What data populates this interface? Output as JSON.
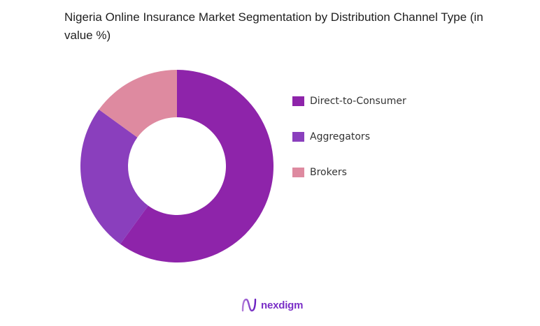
{
  "title": "Nigeria Online Insurance Market Segmentation by Distribution Channel Type (in value %)",
  "brand": {
    "name": "nexdigm",
    "icon": "nexdigm-logo-icon"
  },
  "chart_data": {
    "type": "pie",
    "variant": "donut",
    "title": "Nigeria Online Insurance Market Segmentation by Distribution Channel Type (in value %)",
    "categories": [
      "Direct-to-Consumer",
      "Aggregators",
      "Brokers"
    ],
    "values": [
      60,
      25,
      15
    ],
    "colors": [
      "#8e24aa",
      "#8a3fbd",
      "#de8aa0"
    ],
    "legend_position": "right",
    "start_angle": "12 o'clock, clockwise"
  },
  "legend": [
    {
      "label": "Direct-to-Consumer",
      "color": "#8e24aa"
    },
    {
      "label": "Aggregators",
      "color": "#8a3fbd"
    },
    {
      "label": "Brokers",
      "color": "#de8aa0"
    }
  ]
}
